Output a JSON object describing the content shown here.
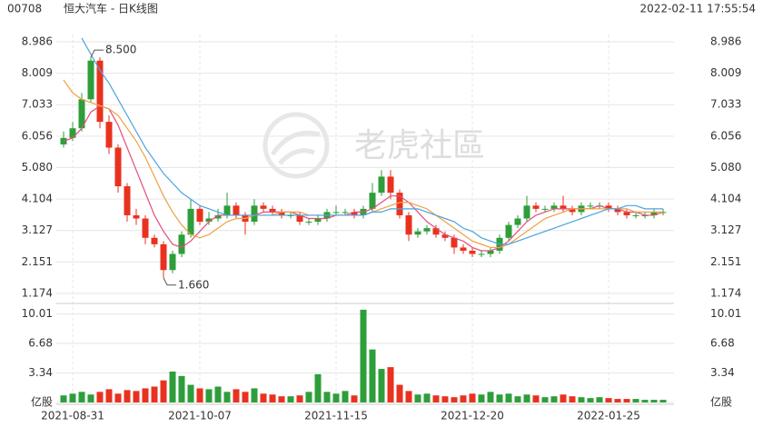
{
  "header": {
    "code": "00708",
    "title": "恒大汽车 - 日K线图",
    "timestamp": "2022-02-11 17:55:54"
  },
  "watermark": "老虎社區",
  "chart_data": [
    {
      "type": "candlestick",
      "up_color": "#2e9e3a",
      "down_color": "#e8321f",
      "ylim": [
        0.92,
        9.21
      ],
      "yticks": [
        1.174,
        2.151,
        3.127,
        4.104,
        {
          "value": 5.08,
          "label": "5.080"
        },
        6.056,
        7.033,
        8.009,
        8.986
      ],
      "grid": true,
      "open": [
        5.8,
        6.0,
        6.3,
        7.2,
        8.4,
        6.5,
        5.7,
        4.5,
        3.6,
        3.5,
        2.9,
        2.7,
        1.9,
        2.4,
        3.0,
        3.8,
        3.4,
        3.5,
        3.6,
        3.9,
        3.6,
        3.4,
        3.9,
        3.8,
        3.7,
        3.6,
        3.6,
        3.4,
        3.4,
        3.5,
        3.7,
        3.7,
        3.7,
        3.6,
        3.8,
        4.3,
        4.8,
        4.3,
        3.6,
        3.0,
        3.1,
        3.2,
        3.0,
        2.9,
        2.6,
        2.5,
        2.4,
        2.4,
        2.5,
        2.9,
        3.3,
        3.5,
        3.9,
        3.8,
        3.8,
        3.9,
        3.8,
        3.7,
        3.9,
        3.9,
        3.9,
        3.8,
        3.7,
        3.6,
        3.6,
        3.6,
        3.7
      ],
      "high": [
        6.2,
        6.5,
        7.4,
        8.5,
        8.5,
        6.7,
        5.8,
        4.6,
        3.8,
        3.6,
        3.0,
        2.8,
        2.5,
        3.1,
        4.1,
        3.9,
        3.7,
        3.8,
        4.3,
        4.0,
        3.7,
        4.1,
        4.0,
        3.9,
        3.8,
        3.7,
        3.7,
        3.5,
        3.6,
        3.8,
        3.9,
        3.8,
        3.8,
        3.9,
        4.6,
        5.0,
        5.0,
        4.4,
        3.7,
        3.2,
        3.3,
        3.3,
        3.1,
        3.0,
        2.7,
        2.6,
        2.5,
        2.6,
        3.0,
        3.4,
        3.6,
        4.2,
        4.0,
        3.9,
        4.0,
        4.2,
        3.9,
        4.0,
        4.0,
        4.0,
        4.0,
        3.9,
        3.8,
        3.7,
        3.7,
        3.8,
        3.8
      ],
      "low": [
        5.7,
        5.9,
        6.2,
        7.1,
        6.3,
        5.5,
        4.3,
        3.4,
        3.3,
        2.7,
        2.6,
        1.66,
        1.8,
        2.3,
        2.9,
        3.3,
        3.3,
        3.4,
        3.5,
        3.5,
        3.0,
        3.3,
        3.7,
        3.6,
        3.5,
        3.5,
        3.3,
        3.3,
        3.3,
        3.4,
        3.6,
        3.6,
        3.5,
        3.5,
        3.7,
        4.2,
        4.1,
        3.5,
        2.8,
        2.9,
        3.0,
        2.9,
        2.8,
        2.4,
        2.4,
        2.3,
        2.3,
        2.3,
        2.4,
        2.8,
        3.2,
        3.4,
        3.7,
        3.7,
        3.7,
        3.7,
        3.6,
        3.6,
        3.8,
        3.8,
        3.7,
        3.6,
        3.5,
        3.5,
        3.5,
        3.5,
        3.6
      ],
      "close": [
        6.0,
        6.3,
        7.2,
        8.4,
        6.5,
        5.7,
        4.5,
        3.6,
        3.5,
        2.9,
        2.7,
        1.9,
        2.4,
        3.0,
        3.8,
        3.4,
        3.5,
        3.6,
        3.9,
        3.6,
        3.4,
        3.9,
        3.8,
        3.7,
        3.6,
        3.6,
        3.4,
        3.4,
        3.5,
        3.7,
        3.7,
        3.7,
        3.6,
        3.8,
        4.3,
        4.8,
        4.3,
        3.6,
        3.0,
        3.1,
        3.2,
        3.0,
        2.9,
        2.6,
        2.5,
        2.4,
        2.4,
        2.5,
        2.9,
        3.3,
        3.5,
        3.9,
        3.8,
        3.8,
        3.9,
        3.8,
        3.7,
        3.9,
        3.9,
        3.9,
        3.8,
        3.7,
        3.6,
        3.6,
        3.6,
        3.7,
        3.7
      ],
      "lines": [
        {
          "color": "#e0507a",
          "values": [
            5.9,
            6.0,
            6.3,
            6.8,
            7.0,
            6.9,
            6.4,
            5.7,
            5.0,
            4.3,
            3.6,
            3.1,
            2.7,
            2.6,
            2.8,
            3.1,
            3.4,
            3.6,
            3.6,
            3.6,
            3.6,
            3.6,
            3.7,
            3.7,
            3.7,
            3.7,
            3.6,
            3.5,
            3.5,
            3.5,
            3.6,
            3.6,
            3.7,
            3.7,
            3.8,
            4.0,
            4.2,
            4.2,
            4.0,
            3.7,
            3.4,
            3.2,
            3.0,
            2.9,
            2.8,
            2.6,
            2.5,
            2.5,
            2.6,
            2.8,
            3.1,
            3.4,
            3.6,
            3.7,
            3.8,
            3.8,
            3.8,
            3.8,
            3.8,
            3.9,
            3.8,
            3.8,
            3.7,
            3.7,
            3.6,
            3.6,
            3.7
          ]
        },
        {
          "color": "#f0a040",
          "values": [
            7.8,
            7.4,
            7.2,
            7.1,
            7.0,
            6.9,
            6.7,
            6.3,
            5.9,
            5.4,
            4.8,
            4.2,
            3.7,
            3.3,
            3.0,
            2.9,
            3.0,
            3.2,
            3.4,
            3.5,
            3.5,
            3.6,
            3.6,
            3.6,
            3.7,
            3.7,
            3.7,
            3.6,
            3.6,
            3.6,
            3.6,
            3.6,
            3.6,
            3.6,
            3.7,
            3.8,
            3.9,
            4.0,
            4.0,
            3.9,
            3.8,
            3.6,
            3.4,
            3.2,
            3.0,
            2.8,
            2.7,
            2.6,
            2.6,
            2.7,
            2.9,
            3.1,
            3.3,
            3.5,
            3.6,
            3.7,
            3.8,
            3.8,
            3.8,
            3.8,
            3.8,
            3.8,
            3.8,
            3.7,
            3.7,
            3.7,
            3.7
          ]
        },
        {
          "color": "#4aa3df",
          "values": [
            null,
            null,
            9.1,
            8.6,
            8.1,
            7.7,
            7.2,
            6.7,
            6.2,
            5.7,
            5.3,
            4.9,
            4.6,
            4.3,
            4.1,
            3.9,
            3.8,
            3.7,
            3.6,
            3.6,
            3.6,
            3.6,
            3.6,
            3.6,
            3.6,
            3.6,
            3.6,
            3.6,
            3.6,
            3.6,
            3.6,
            3.6,
            3.6,
            3.6,
            3.7,
            3.7,
            3.8,
            3.8,
            3.8,
            3.8,
            3.7,
            3.6,
            3.5,
            3.4,
            3.2,
            3.1,
            2.9,
            2.8,
            2.7,
            2.7,
            2.8,
            2.9,
            3.0,
            3.1,
            3.2,
            3.3,
            3.4,
            3.5,
            3.6,
            3.7,
            3.8,
            3.8,
            3.9,
            3.9,
            3.8,
            3.8,
            3.8
          ]
        }
      ],
      "annotations": [
        {
          "text": "8.500",
          "value": 8.5
        },
        {
          "text": "1.660",
          "value": 1.66
        }
      ]
    },
    {
      "type": "bar",
      "ylim": [
        0,
        10.8
      ],
      "yticks": [
        {
          "value": 0,
          "label": "亿股"
        },
        3.34,
        6.68,
        10.01
      ],
      "categories": [
        null,
        "2021-08-31",
        null,
        null,
        null,
        null,
        null,
        null,
        null,
        null,
        null,
        null,
        null,
        null,
        null,
        "2021-10-07",
        null,
        null,
        null,
        null,
        null,
        null,
        null,
        null,
        null,
        null,
        null,
        null,
        null,
        null,
        "2021-11-15",
        null,
        null,
        null,
        null,
        null,
        null,
        null,
        null,
        null,
        null,
        null,
        null,
        null,
        null,
        "2021-12-20",
        null,
        null,
        null,
        null,
        null,
        null,
        null,
        null,
        null,
        null,
        null,
        null,
        null,
        null,
        "2022-01-25",
        null,
        null,
        null,
        null,
        null,
        null
      ],
      "values": [
        0.8,
        1.0,
        1.2,
        0.9,
        1.2,
        1.5,
        1.0,
        1.4,
        1.3,
        1.6,
        1.8,
        2.5,
        3.5,
        3.0,
        2.0,
        1.6,
        1.5,
        1.8,
        1.2,
        1.5,
        1.2,
        1.6,
        1.0,
        0.9,
        0.7,
        0.7,
        0.8,
        1.2,
        3.2,
        1.2,
        1.0,
        1.3,
        0.8,
        10.5,
        6.0,
        3.8,
        4.0,
        2.0,
        1.3,
        0.9,
        1.0,
        0.8,
        0.7,
        0.6,
        0.8,
        1.0,
        0.9,
        1.2,
        0.9,
        1.0,
        0.7,
        0.9,
        0.8,
        0.6,
        0.7,
        0.9,
        0.7,
        0.6,
        0.5,
        0.6,
        0.5,
        0.4,
        0.4,
        0.4,
        0.3,
        0.3,
        0.3
      ]
    }
  ]
}
